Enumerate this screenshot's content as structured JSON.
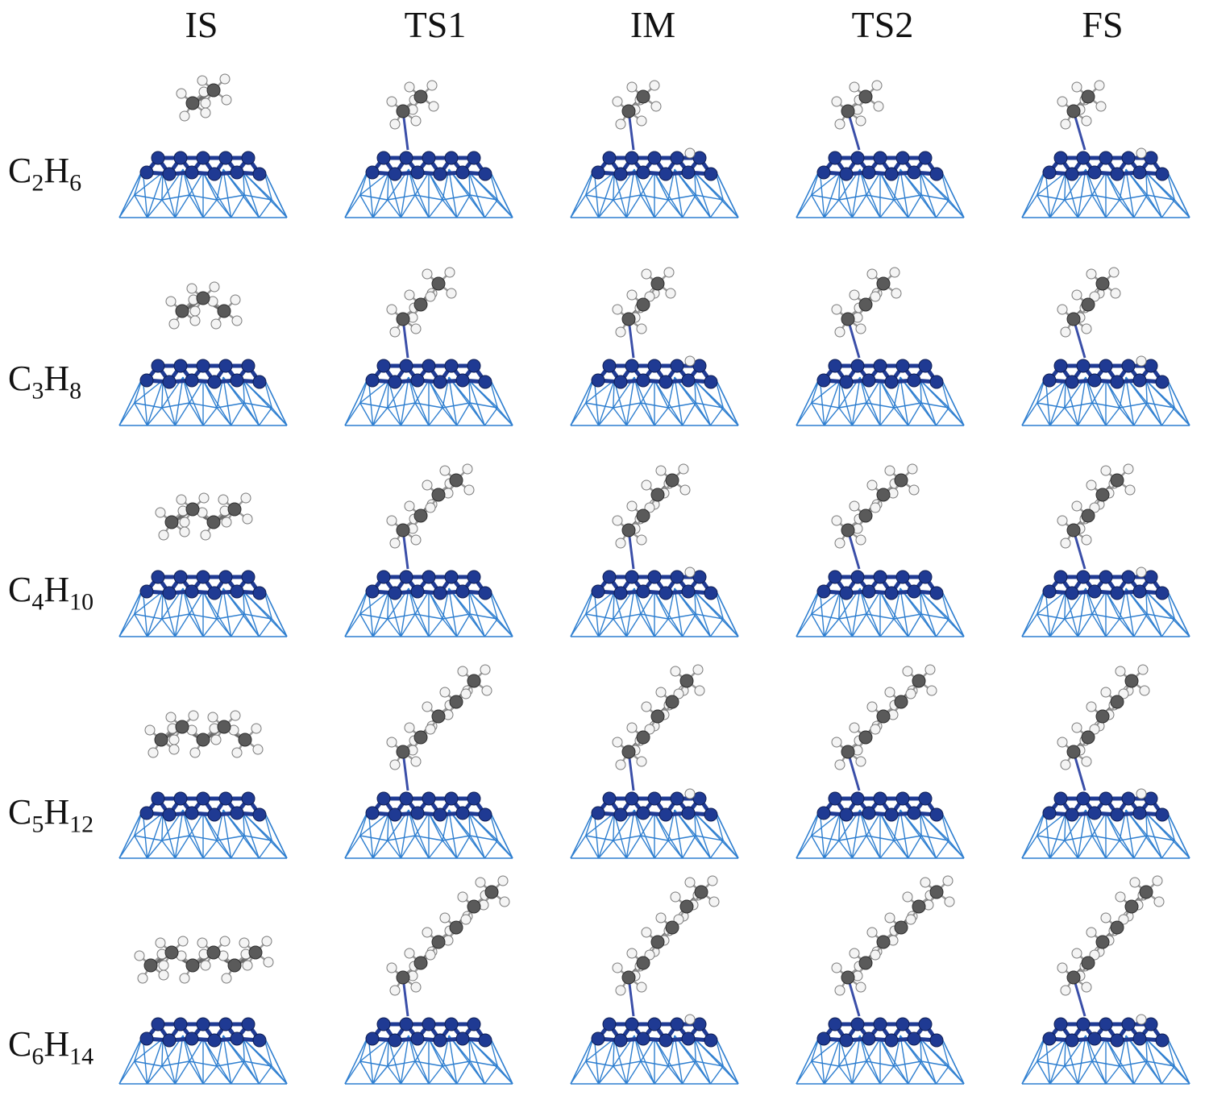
{
  "figure": {
    "columns": [
      "IS",
      "TS1",
      "IM",
      "TS2",
      "FS"
    ],
    "rows": [
      {
        "element": "C",
        "n_c": "2",
        "hydrogen": "H",
        "n_h": "6"
      },
      {
        "element": "C",
        "n_c": "3",
        "hydrogen": "H",
        "n_h": "8"
      },
      {
        "element": "C",
        "n_c": "4",
        "hydrogen": "H",
        "n_h": "10"
      },
      {
        "element": "C",
        "n_c": "5",
        "hydrogen": "H",
        "n_h": "12"
      },
      {
        "element": "C",
        "n_c": "6",
        "hydrogen": "H",
        "n_h": "14"
      }
    ]
  },
  "colors": {
    "surface_atom": "#1f3a93",
    "lattice_line": "#2f7fd0",
    "carbon_atom": "#5a5a5a",
    "hydrogen_atom": "#f4f4f4",
    "text": "#111111"
  }
}
